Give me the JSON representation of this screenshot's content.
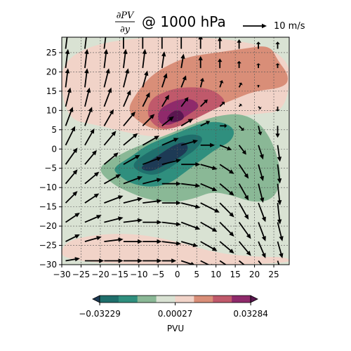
{
  "chart_data": {
    "type": "heatmap",
    "title": {
      "numerator": "∂PV",
      "denominator": "∂y",
      "suffix": "@ 1000 hPa"
    },
    "quiver_key": {
      "label": "10 m/s",
      "speed": 10
    },
    "xlim": [
      -30,
      29
    ],
    "ylim": [
      -30,
      29
    ],
    "xticks": [
      -30,
      -25,
      -20,
      -15,
      -10,
      -5,
      0,
      5,
      10,
      15,
      20,
      25
    ],
    "yticks": [
      -30,
      -25,
      -20,
      -15,
      -10,
      -5,
      0,
      5,
      10,
      15,
      20,
      25
    ],
    "xtick_labels": [
      "−30",
      "−25",
      "−20",
      "−15",
      "−10",
      "−5",
      "0",
      "5",
      "10",
      "15",
      "20",
      "25"
    ],
    "ytick_labels": [
      "−30",
      "−25",
      "−20",
      "−15",
      "−10",
      "−5",
      "0",
      "5",
      "10",
      "15",
      "20",
      "25"
    ],
    "grid": true,
    "colorbar": {
      "label": "PVU",
      "orientation": "horizontal",
      "extend": "both",
      "tick_values": [
        -0.03229,
        0.00027,
        0.03284
      ],
      "tick_labels": [
        "−0.03229",
        "0.00027",
        "0.03284"
      ],
      "levels": [
        -0.0405,
        -0.0323,
        -0.0242,
        -0.0161,
        -0.008,
        0.00027,
        0.0084,
        0.0165,
        0.0247,
        0.0328,
        0.0409
      ],
      "colors": [
        "#1d3a55",
        "#1f6f6c",
        "#2f8f7e",
        "#8ab896",
        "#d9e2d3",
        "#f1d3c8",
        "#d98e78",
        "#c0596b",
        "#8f2a6b",
        "#5a1650"
      ]
    },
    "field_colors": {
      "light_green": "#d9e2d3",
      "light_pink": "#f1d3c8",
      "mid_green": "#8ab896",
      "teal": "#2f8f7e",
      "dark_teal": "#1f6f6c",
      "navy": "#1d3a55",
      "salmon": "#d98e78",
      "rose": "#c0596b",
      "magenta": "#8f2a6b",
      "plum": "#5a1650"
    },
    "regions": [
      {
        "level": "light_pink",
        "points": [
          [
            -30,
            29
          ],
          [
            29,
            29
          ],
          [
            29,
            10
          ],
          [
            20,
            9
          ],
          [
            12,
            8
          ],
          [
            5,
            6
          ],
          [
            0,
            4
          ],
          [
            -5,
            3
          ],
          [
            -12,
            4
          ],
          [
            -20,
            6
          ],
          [
            -30,
            8
          ]
        ]
      },
      {
        "level": "light_pink",
        "points": [
          [
            -30,
            -24
          ],
          [
            -20,
            -22
          ],
          [
            -10,
            -22
          ],
          [
            0,
            -24
          ],
          [
            10,
            -27
          ],
          [
            20,
            -28
          ],
          [
            29,
            -28
          ],
          [
            29,
            -30
          ],
          [
            -30,
            -30
          ]
        ]
      },
      {
        "level": "salmon",
        "points": [
          [
            -11,
            14
          ],
          [
            -7,
            19
          ],
          [
            -2,
            22
          ],
          [
            3,
            24
          ],
          [
            10,
            25
          ],
          [
            17,
            26
          ],
          [
            24,
            27
          ],
          [
            26,
            23
          ],
          [
            29,
            19
          ],
          [
            28,
            16
          ],
          [
            20,
            15
          ],
          [
            15,
            13
          ],
          [
            10,
            11
          ],
          [
            6,
            9
          ],
          [
            2,
            7
          ],
          [
            -2,
            5
          ],
          [
            -6,
            5
          ],
          [
            -10,
            7
          ],
          [
            -13,
            10
          ]
        ]
      },
      {
        "level": "rose",
        "points": [
          [
            -7,
            13
          ],
          [
            -3,
            15
          ],
          [
            1,
            16
          ],
          [
            6,
            16
          ],
          [
            10,
            15
          ],
          [
            13,
            12
          ],
          [
            9,
            10
          ],
          [
            5,
            8
          ],
          [
            1,
            6
          ],
          [
            -3,
            5
          ],
          [
            -6,
            6
          ],
          [
            -8,
            9
          ]
        ]
      },
      {
        "level": "magenta",
        "points": [
          [
            -5,
            10
          ],
          [
            -2,
            12
          ],
          [
            1,
            13
          ],
          [
            4,
            13
          ],
          [
            6,
            11
          ],
          [
            3,
            9
          ],
          [
            0,
            7
          ],
          [
            -3,
            6
          ],
          [
            -5,
            7
          ]
        ]
      },
      {
        "level": "plum",
        "points": [
          [
            -3,
            8
          ],
          [
            -1,
            10
          ],
          [
            1,
            10
          ],
          [
            2,
            8
          ],
          [
            0,
            7
          ],
          [
            -2,
            7
          ]
        ]
      },
      {
        "level": "mid_green",
        "points": [
          [
            -21,
            -5
          ],
          [
            -16,
            -2
          ],
          [
            -12,
            0
          ],
          [
            -7,
            2
          ],
          [
            -2,
            4
          ],
          [
            3,
            6
          ],
          [
            8,
            8
          ],
          [
            13,
            9
          ],
          [
            17,
            9
          ],
          [
            21,
            7
          ],
          [
            24,
            3
          ],
          [
            26,
            -2
          ],
          [
            27,
            -8
          ],
          [
            25,
            -13
          ],
          [
            20,
            -14
          ],
          [
            14,
            -12
          ],
          [
            9,
            -11
          ],
          [
            4,
            -13
          ],
          [
            -2,
            -14
          ],
          [
            -8,
            -13
          ],
          [
            -13,
            -11
          ],
          [
            -17,
            -9
          ]
        ]
      },
      {
        "level": "teal",
        "points": [
          [
            -17,
            -5
          ],
          [
            -12,
            -2
          ],
          [
            -8,
            1
          ],
          [
            -3,
            3
          ],
          [
            2,
            5
          ],
          [
            7,
            7
          ],
          [
            12,
            7
          ],
          [
            15,
            5
          ],
          [
            14,
            2
          ],
          [
            10,
            0
          ],
          [
            6,
            -3
          ],
          [
            2,
            -6
          ],
          [
            -2,
            -9
          ],
          [
            -7,
            -10
          ],
          [
            -12,
            -9
          ],
          [
            -15,
            -7
          ]
        ]
      },
      {
        "level": "dark_teal",
        "points": [
          [
            -12,
            -4
          ],
          [
            -8,
            -1
          ],
          [
            -4,
            1
          ],
          [
            0,
            3
          ],
          [
            4,
            4
          ],
          [
            7,
            3
          ],
          [
            5,
            0
          ],
          [
            2,
            -2
          ],
          [
            -2,
            -5
          ],
          [
            -6,
            -7
          ],
          [
            -10,
            -6
          ]
        ]
      },
      {
        "level": "navy",
        "points": [
          [
            -10,
            -5
          ],
          [
            -7,
            -3
          ],
          [
            -4,
            -1
          ],
          [
            -1,
            1
          ],
          [
            2,
            2
          ],
          [
            3,
            0
          ],
          [
            1,
            -2
          ],
          [
            -3,
            -4
          ],
          [
            -7,
            -6
          ]
        ]
      }
    ],
    "wind_vectors": [
      [
        -29,
        -29,
        6,
        1
      ],
      [
        -24,
        -29,
        8,
        0
      ],
      [
        -19,
        -29,
        8,
        0
      ],
      [
        -14,
        -29,
        8,
        0
      ],
      [
        -9,
        -29,
        8,
        0
      ],
      [
        -4,
        -29,
        6,
        0
      ],
      [
        1,
        -29,
        6,
        -2
      ],
      [
        6,
        -29,
        6,
        -3
      ],
      [
        11,
        -29,
        6,
        -4
      ],
      [
        16,
        -29,
        5,
        -4
      ],
      [
        21,
        -29,
        4,
        -5
      ],
      [
        26,
        -29,
        2,
        -6
      ],
      [
        -29,
        -24,
        6,
        3
      ],
      [
        -24,
        -24,
        7,
        2
      ],
      [
        -19,
        -24,
        8,
        1
      ],
      [
        -14,
        -24,
        8,
        0
      ],
      [
        -9,
        -24,
        8,
        0
      ],
      [
        -4,
        -24,
        8,
        -1
      ],
      [
        1,
        -24,
        7,
        -2
      ],
      [
        6,
        -24,
        7,
        -4
      ],
      [
        11,
        -24,
        6,
        -5
      ],
      [
        16,
        -24,
        5,
        -6
      ],
      [
        21,
        -24,
        3,
        -7
      ],
      [
        26,
        -24,
        2,
        -7
      ],
      [
        -29,
        -19,
        6,
        4
      ],
      [
        -24,
        -19,
        7,
        3
      ],
      [
        -19,
        -19,
        8,
        2
      ],
      [
        -14,
        -19,
        8,
        1
      ],
      [
        -9,
        -19,
        8,
        0
      ],
      [
        -4,
        -19,
        8,
        -1
      ],
      [
        1,
        -19,
        8,
        -3
      ],
      [
        6,
        -19,
        7,
        -4
      ],
      [
        11,
        -19,
        6,
        -6
      ],
      [
        16,
        -19,
        5,
        -7
      ],
      [
        21,
        -19,
        3,
        -8
      ],
      [
        26,
        -19,
        2,
        -8
      ],
      [
        -29,
        -14,
        5,
        5
      ],
      [
        -24,
        -14,
        6,
        4
      ],
      [
        -19,
        -14,
        8,
        3
      ],
      [
        -14,
        -14,
        8,
        2
      ],
      [
        -9,
        -14,
        8,
        1
      ],
      [
        -4,
        -14,
        8,
        0
      ],
      [
        1,
        -14,
        8,
        -2
      ],
      [
        6,
        -14,
        8,
        -4
      ],
      [
        11,
        -14,
        6,
        -6
      ],
      [
        16,
        -14,
        4,
        -7
      ],
      [
        21,
        -14,
        3,
        -8
      ],
      [
        26,
        -14,
        1,
        -9
      ],
      [
        -29,
        -9,
        5,
        6
      ],
      [
        -24,
        -9,
        6,
        5
      ],
      [
        -19,
        -9,
        7,
        4
      ],
      [
        -14,
        -9,
        8,
        3
      ],
      [
        -9,
        -9,
        8,
        2
      ],
      [
        -4,
        -9,
        8,
        0
      ],
      [
        1,
        -9,
        8,
        -1
      ],
      [
        6,
        -9,
        7,
        -3
      ],
      [
        11,
        -9,
        6,
        -5
      ],
      [
        16,
        -9,
        4,
        -7
      ],
      [
        21,
        -9,
        2,
        -8
      ],
      [
        26,
        -9,
        1,
        -9
      ],
      [
        -29,
        -4,
        5,
        7
      ],
      [
        -24,
        -4,
        5,
        6
      ],
      [
        -19,
        -4,
        6,
        5
      ],
      [
        -14,
        -4,
        7,
        4
      ],
      [
        -9,
        -4,
        8,
        3
      ],
      [
        -4,
        -4,
        8,
        2
      ],
      [
        1,
        -4,
        8,
        0
      ],
      [
        6,
        -4,
        7,
        -2
      ],
      [
        11,
        -4,
        6,
        -4
      ],
      [
        16,
        -4,
        4,
        -6
      ],
      [
        21,
        -4,
        2,
        -7
      ],
      [
        26,
        -4,
        1,
        -8
      ],
      [
        -29,
        1,
        4,
        8
      ],
      [
        -24,
        1,
        4,
        7
      ],
      [
        -19,
        1,
        5,
        6
      ],
      [
        -14,
        1,
        6,
        5
      ],
      [
        -9,
        1,
        7,
        4
      ],
      [
        -4,
        1,
        7,
        3
      ],
      [
        1,
        1,
        7,
        2
      ],
      [
        6,
        1,
        6,
        0
      ],
      [
        11,
        1,
        5,
        -2
      ],
      [
        16,
        1,
        3,
        -4
      ],
      [
        21,
        1,
        2,
        -6
      ],
      [
        26,
        1,
        1,
        -7
      ],
      [
        -29,
        6,
        3,
        8
      ],
      [
        -24,
        6,
        3,
        8
      ],
      [
        -19,
        6,
        4,
        7
      ],
      [
        -14,
        6,
        5,
        6
      ],
      [
        -9,
        6,
        5,
        5
      ],
      [
        -4,
        6,
        5,
        4
      ],
      [
        1,
        6,
        5,
        3
      ],
      [
        6,
        6,
        4,
        2
      ],
      [
        11,
        6,
        3,
        0
      ],
      [
        16,
        6,
        2,
        -2
      ],
      [
        21,
        6,
        1,
        -4
      ],
      [
        26,
        6,
        0,
        -5
      ],
      [
        -29,
        11,
        2,
        8
      ],
      [
        -24,
        11,
        2,
        8
      ],
      [
        -19,
        11,
        3,
        8
      ],
      [
        -14,
        11,
        3,
        7
      ],
      [
        -9,
        11,
        3,
        6
      ],
      [
        -4,
        11,
        3,
        5
      ],
      [
        1,
        11,
        3,
        4
      ],
      [
        6,
        11,
        3,
        3
      ],
      [
        11,
        11,
        2,
        2
      ],
      [
        16,
        11,
        1,
        1
      ],
      [
        21,
        11,
        1,
        -1
      ],
      [
        26,
        11,
        0,
        -2
      ],
      [
        -29,
        16,
        1,
        8
      ],
      [
        -24,
        16,
        1,
        8
      ],
      [
        -19,
        16,
        2,
        8
      ],
      [
        -14,
        16,
        2,
        8
      ],
      [
        -9,
        16,
        2,
        7
      ],
      [
        -4,
        16,
        2,
        6
      ],
      [
        1,
        16,
        2,
        5
      ],
      [
        6,
        16,
        1,
        4
      ],
      [
        11,
        16,
        1,
        3
      ],
      [
        16,
        16,
        1,
        2
      ],
      [
        21,
        16,
        0,
        1
      ],
      [
        26,
        16,
        0,
        0
      ],
      [
        -29,
        21,
        1,
        8
      ],
      [
        -24,
        21,
        1,
        8
      ],
      [
        -19,
        21,
        1,
        8
      ],
      [
        -14,
        21,
        1,
        8
      ],
      [
        -9,
        21,
        1,
        8
      ],
      [
        -4,
        21,
        1,
        7
      ],
      [
        1,
        21,
        1,
        6
      ],
      [
        6,
        21,
        0,
        5
      ],
      [
        11,
        21,
        0,
        4
      ],
      [
        16,
        21,
        0,
        3
      ],
      [
        21,
        21,
        0,
        2
      ],
      [
        26,
        21,
        0,
        2
      ],
      [
        -29,
        26,
        1,
        8
      ],
      [
        -24,
        26,
        1,
        8
      ],
      [
        -19,
        26,
        1,
        8
      ],
      [
        -14,
        26,
        0,
        8
      ],
      [
        -9,
        26,
        0,
        8
      ],
      [
        -4,
        26,
        0,
        8
      ],
      [
        1,
        26,
        0,
        7
      ],
      [
        6,
        26,
        0,
        6
      ],
      [
        11,
        26,
        0,
        5
      ],
      [
        16,
        26,
        0,
        4
      ],
      [
        21,
        26,
        0,
        3
      ],
      [
        26,
        26,
        0,
        3
      ]
    ]
  }
}
